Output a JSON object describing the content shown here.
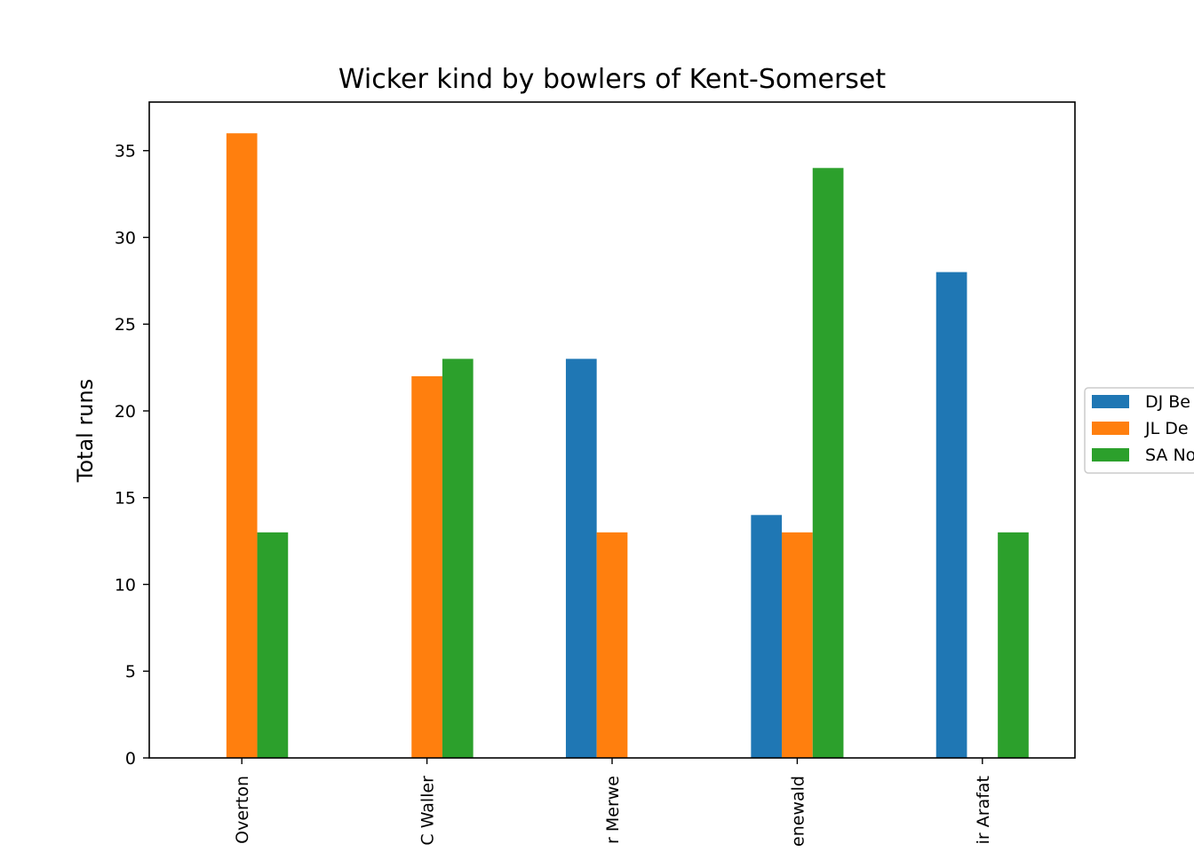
{
  "chart_data": {
    "type": "bar",
    "title": "Wicker kind by bowlers of Kent-Somerset",
    "xlabel": "",
    "ylabel": "Total runs",
    "categories": [
      "Overton",
      "C Waller",
      "r Merwe",
      "enewald",
      "ir Arafat"
    ],
    "series": [
      {
        "name": "DJ Be",
        "color": "#1f77b4",
        "values": [
          0,
          0,
          23,
          14,
          28
        ]
      },
      {
        "name": "JL De",
        "color": "#ff7f0e",
        "values": [
          36,
          22,
          13,
          13,
          0
        ]
      },
      {
        "name": "SA No",
        "color": "#2ca02c",
        "values": [
          13,
          23,
          0,
          34,
          13
        ]
      }
    ],
    "ylim": [
      0,
      37.8
    ],
    "yticks": [
      0,
      5,
      10,
      15,
      20,
      25,
      30,
      35
    ],
    "grid": false,
    "legend_position": "right"
  }
}
